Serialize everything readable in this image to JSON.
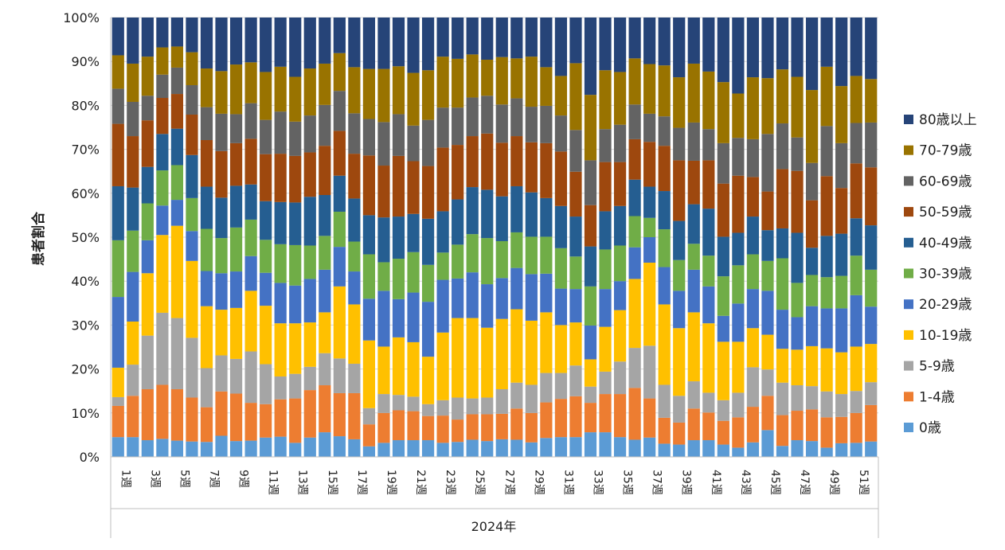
{
  "chart_data": {
    "type": "bar",
    "stacked": true,
    "percent": true,
    "title": "",
    "ylabel": "患者割合",
    "xlabel": "2024年",
    "ylim": [
      0,
      100
    ],
    "yticks": [
      "0%",
      "10%",
      "20%",
      "30%",
      "40%",
      "50%",
      "60%",
      "70%",
      "80%",
      "90%",
      "100%"
    ],
    "categories": [
      "1週",
      "2週",
      "3週",
      "4週",
      "5週",
      "6週",
      "7週",
      "8週",
      "9週",
      "10週",
      "11週",
      "12週",
      "13週",
      "14週",
      "15週",
      "16週",
      "17週",
      "18週",
      "19週",
      "20週",
      "21週",
      "22週",
      "23週",
      "24週",
      "25週",
      "26週",
      "27週",
      "28週",
      "29週",
      "30週",
      "31週",
      "32週",
      "33週",
      "34週",
      "35週",
      "36週",
      "37週",
      "38週",
      "39週",
      "40週",
      "41週",
      "42週",
      "43週",
      "44週",
      "45週",
      "46週",
      "47週",
      "48週",
      "49週",
      "50週",
      "51週",
      "52週"
    ],
    "xtick_labels": [
      "1週",
      "",
      "3週",
      "",
      "5週",
      "",
      "7週",
      "",
      "9週",
      "",
      "11週",
      "",
      "13週",
      "",
      "15週",
      "",
      "17週",
      "",
      "19週",
      "",
      "21週",
      "",
      "23週",
      "",
      "25週",
      "",
      "27週",
      "",
      "29週",
      "",
      "31週",
      "",
      "33週",
      "",
      "35週",
      "",
      "37週",
      "",
      "39週",
      "",
      "41週",
      "",
      "43週",
      "",
      "45週",
      "",
      "47週",
      "",
      "49週",
      "",
      "51週",
      ""
    ],
    "legend_position": "right",
    "series": [
      {
        "name": "0歳",
        "color": "#5b9bd5",
        "cum": [
          4.5,
          4.5,
          3.8,
          4.1,
          3.7,
          3.5,
          3.4,
          4.8,
          3.6,
          3.7,
          4.4,
          4.6,
          3.2,
          4.4,
          5.6,
          4.7,
          4.0,
          2.4,
          3.2,
          3.8,
          3.8,
          3.8,
          3.2,
          3.4,
          3.9,
          3.6,
          4.0,
          3.9,
          3.3,
          4.3,
          4.5,
          4.5,
          5.6,
          5.6,
          4.5,
          3.9,
          4.4,
          3.0,
          2.8,
          3.8,
          3.8,
          2.8,
          2.1,
          3.3,
          6.1,
          2.5,
          3.8,
          3.6,
          2.1,
          3.1,
          3.2,
          3.5
        ]
      },
      {
        "name": "1-4歳",
        "color": "#ed7d31",
        "cum": [
          11.6,
          13.9,
          15.4,
          16.4,
          15.4,
          13.5,
          11.3,
          14.9,
          14.4,
          12.3,
          12.0,
          13.1,
          13.3,
          15.2,
          16.3,
          14.5,
          14.5,
          7.4,
          10.0,
          10.6,
          10.4,
          9.3,
          9.4,
          8.5,
          9.7,
          9.7,
          9.8,
          11.0,
          10.0,
          12.4,
          13.2,
          13.8,
          12.3,
          14.3,
          14.3,
          15.7,
          13.3,
          8.9,
          7.8,
          11.0,
          10.1,
          8.2,
          9.0,
          11.4,
          13.9,
          9.5,
          10.5,
          10.8,
          9.0,
          9.1,
          10.0,
          11.8
        ]
      },
      {
        "name": "5-9歳",
        "color": "#a5a5a5",
        "cum": [
          13.6,
          21.0,
          27.6,
          32.8,
          31.6,
          27.1,
          20.2,
          23.1,
          22.3,
          24.0,
          21.1,
          18.3,
          18.9,
          20.5,
          23.6,
          22.4,
          21.2,
          11.1,
          14.3,
          14.1,
          13.7,
          12.0,
          12.9,
          13.5,
          13.3,
          13.5,
          15.4,
          16.9,
          16.4,
          19.1,
          19.1,
          20.8,
          16.0,
          19.4,
          21.7,
          24.8,
          25.3,
          16.4,
          13.9,
          17.2,
          14.6,
          12.9,
          14.6,
          20.4,
          19.9,
          16.9,
          16.3,
          16.1,
          14.9,
          14.3,
          15.0,
          17.0
        ]
      },
      {
        "name": "10-19歳",
        "color": "#ffc000",
        "cum": [
          20.3,
          30.8,
          41.8,
          50.5,
          52.6,
          44.6,
          34.3,
          33.5,
          33.9,
          37.8,
          34.4,
          30.4,
          30.4,
          30.6,
          32.9,
          38.8,
          34.7,
          26.5,
          25.1,
          27.2,
          26.1,
          22.8,
          28.3,
          31.6,
          31.6,
          29.4,
          31.4,
          33.6,
          31.0,
          32.9,
          30.0,
          30.6,
          22.2,
          29.6,
          33.4,
          40.5,
          44.2,
          34.7,
          29.3,
          32.9,
          30.4,
          26.2,
          26.2,
          29.3,
          27.8,
          24.6,
          24.4,
          25.2,
          24.7,
          23.8,
          25.1,
          25.7
        ]
      },
      {
        "name": "20-29歳",
        "color": "#4472c4",
        "cum": [
          36.4,
          42.1,
          49.3,
          57.2,
          58.5,
          51.4,
          42.3,
          41.8,
          42.2,
          45.7,
          41.9,
          39.6,
          39.0,
          40.5,
          42.6,
          47.8,
          42.2,
          36.0,
          37.8,
          35.9,
          37.4,
          35.3,
          40.3,
          40.6,
          42.0,
          39.3,
          40.7,
          43.0,
          41.6,
          41.7,
          38.3,
          38.2,
          29.9,
          38.2,
          40.0,
          47.7,
          50.0,
          43.2,
          37.8,
          42.6,
          38.8,
          32.1,
          34.9,
          38.2,
          37.8,
          33.5,
          31.8,
          34.3,
          33.8,
          33.8,
          36.8,
          34.2
        ]
      },
      {
        "name": "30-39歳",
        "color": "#70ad47",
        "cum": [
          49.3,
          51.5,
          57.7,
          65.2,
          66.4,
          58.9,
          51.9,
          49.8,
          52.2,
          54.0,
          49.4,
          48.4,
          48.2,
          48.1,
          50.3,
          55.8,
          49.0,
          46.1,
          44.3,
          45.1,
          46.6,
          43.7,
          46.5,
          48.3,
          50.7,
          49.8,
          49.1,
          51.1,
          50.1,
          50.1,
          47.5,
          45.6,
          38.8,
          47.2,
          48.1,
          54.8,
          54.4,
          51.8,
          44.8,
          48.5,
          45.8,
          41.1,
          43.6,
          46.1,
          44.6,
          45.2,
          39.6,
          41.4,
          40.9,
          41.2,
          45.8,
          42.6
        ]
      },
      {
        "name": "40-49歳",
        "color": "#255e91",
        "cum": [
          61.6,
          61.3,
          66.0,
          73.5,
          74.7,
          68.7,
          61.5,
          59.0,
          61.7,
          62.0,
          58.2,
          58.0,
          57.9,
          59.2,
          59.6,
          64.0,
          58.8,
          55.0,
          54.5,
          54.7,
          55.3,
          54.2,
          55.9,
          58.6,
          61.4,
          60.8,
          59.3,
          61.6,
          60.2,
          58.9,
          57.1,
          54.7,
          47.9,
          55.9,
          57.1,
          63.1,
          61.5,
          60.5,
          53.7,
          57.5,
          56.5,
          50.1,
          51.0,
          54.7,
          51.6,
          52.0,
          51.0,
          47.6,
          50.3,
          50.8,
          54.3,
          52.7
        ]
      },
      {
        "name": "50-59歳",
        "color": "#9e480e",
        "cum": [
          75.8,
          73.0,
          76.6,
          81.7,
          82.6,
          77.9,
          72.1,
          69.6,
          71.4,
          72.4,
          68.9,
          69.0,
          68.5,
          69.3,
          70.8,
          74.2,
          69.0,
          68.6,
          66.3,
          68.5,
          67.3,
          66.2,
          70.4,
          71.0,
          73.0,
          73.6,
          71.5,
          73.0,
          71.6,
          71.4,
          69.5,
          64.9,
          57.3,
          67.1,
          67.1,
          72.3,
          71.7,
          70.8,
          67.5,
          67.4,
          67.5,
          62.2,
          64.0,
          63.7,
          60.4,
          65.5,
          65.1,
          58.4,
          63.9,
          61.2,
          66.8,
          65.9
        ]
      },
      {
        "name": "60-69歳",
        "color": "#636363",
        "cum": [
          83.8,
          80.8,
          82.2,
          87.0,
          88.6,
          84.6,
          79.6,
          78.1,
          78.0,
          80.5,
          76.7,
          78.6,
          76.3,
          77.7,
          80.1,
          83.3,
          78.2,
          76.9,
          76.2,
          78.0,
          75.4,
          76.7,
          79.5,
          79.5,
          81.8,
          82.2,
          80.2,
          81.6,
          79.7,
          79.9,
          77.7,
          74.4,
          67.5,
          74.6,
          75.6,
          80.2,
          78.1,
          77.5,
          74.9,
          76.1,
          74.6,
          71.4,
          72.6,
          72.3,
          73.5,
          75.9,
          72.7,
          66.9,
          75.3,
          71.4,
          76.0,
          76.1
        ]
      },
      {
        "name": "70-79歳",
        "color": "#997300",
        "cum": [
          91.4,
          89.5,
          91.1,
          93.2,
          93.4,
          92.1,
          88.4,
          87.8,
          89.3,
          89.8,
          87.6,
          88.8,
          86.5,
          88.4,
          89.5,
          91.9,
          88.7,
          88.3,
          88.3,
          88.9,
          87.4,
          88.0,
          91.1,
          90.6,
          91.6,
          90.4,
          91.0,
          90.7,
          91.1,
          88.7,
          86.7,
          89.6,
          82.4,
          88.0,
          87.6,
          90.7,
          89.4,
          89.1,
          86.4,
          89.5,
          87.7,
          85.3,
          82.7,
          86.4,
          86.2,
          88.2,
          86.5,
          83.5,
          88.8,
          84.4,
          86.7,
          86.0
        ]
      },
      {
        "name": "80歳以上",
        "color": "#264478",
        "cum": [
          100,
          100,
          100,
          100,
          100,
          100,
          100,
          100,
          100,
          100,
          100,
          100,
          100,
          100,
          100,
          100,
          100,
          100,
          100,
          100,
          100,
          100,
          100,
          100,
          100,
          100,
          100,
          100,
          100,
          100,
          100,
          100,
          100,
          100,
          100,
          100,
          100,
          100,
          100,
          100,
          100,
          100,
          100,
          100,
          100,
          100,
          100,
          100,
          100,
          100,
          100,
          100
        ]
      }
    ]
  }
}
